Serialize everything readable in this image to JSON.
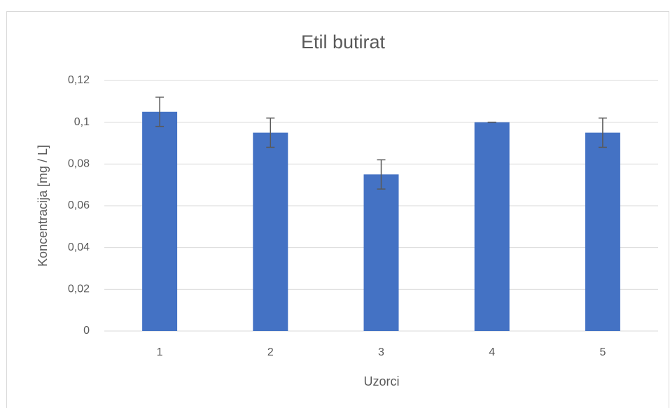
{
  "chart_data": {
    "type": "bar",
    "title": "Etil butirat",
    "xlabel": "Uzorci",
    "ylabel": "Koncentracija [mg / L]",
    "categories": [
      "1",
      "2",
      "3",
      "4",
      "5"
    ],
    "values": [
      0.105,
      0.095,
      0.075,
      0.1,
      0.095
    ],
    "errors": [
      0.007,
      0.007,
      0.007,
      0,
      0.007
    ],
    "color": "#4472c4",
    "ylim": [
      0,
      0.12
    ],
    "yticks": [
      0,
      {
        "value": 0.02,
        "label": "0,02"
      },
      {
        "value": 0.04,
        "label": "0,04"
      },
      {
        "value": 0.06,
        "label": "0,06"
      },
      {
        "value": 0.08,
        "label": "0,08"
      },
      {
        "value": 0.1,
        "label": "0,1"
      },
      {
        "value": 0.12,
        "label": "0,12"
      }
    ],
    "grid": true
  }
}
